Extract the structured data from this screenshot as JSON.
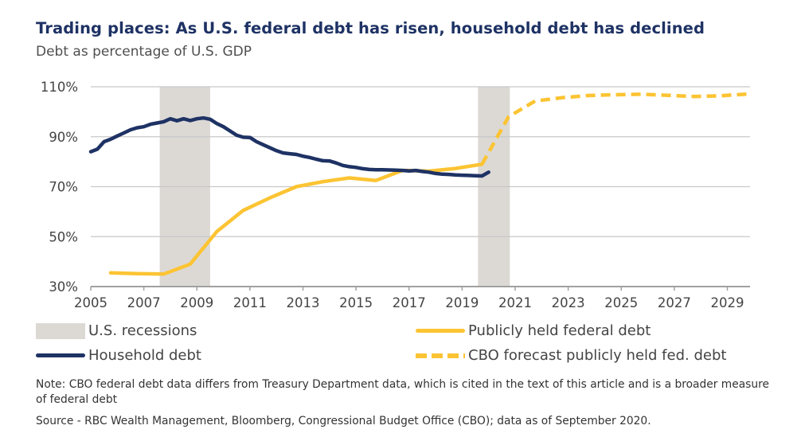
{
  "header": {
    "title": "Trading places: As U.S. federal debt has risen, household debt has declined",
    "subtitle": "Debt as percentage of U.S. GDP"
  },
  "chart_data": {
    "type": "line",
    "title": "Trading places: As U.S. federal debt has risen, household debt has declined",
    "subtitle": "Debt as percentage of U.S. GDP",
    "xlabel": "",
    "ylabel": "Debt as percentage of U.S. GDP",
    "xlim": [
      2005,
      2029.9
    ],
    "ylim": [
      30,
      110
    ],
    "x_ticks": [
      2005,
      2007,
      2009,
      2011,
      2013,
      2015,
      2017,
      2019,
      2021,
      2023,
      2025,
      2027,
      2029
    ],
    "x_tick_labels": [
      "2005",
      "2007",
      "2009",
      "2011",
      "2013",
      "2015",
      "2017",
      "2019",
      "2021",
      "2023",
      "2025",
      "2027",
      "2029"
    ],
    "y_ticks": [
      30,
      50,
      70,
      90,
      110
    ],
    "y_tick_labels": [
      "30%",
      "50%",
      "70%",
      "90%",
      "110%"
    ],
    "grid": "horizontal",
    "legend_position": "bottom",
    "recessions": [
      {
        "name": "U.S. recessions",
        "start": 2007.6,
        "end": 2009.5
      },
      {
        "name": "U.S. recessions",
        "start": 2019.6,
        "end": 2020.8
      }
    ],
    "series": [
      {
        "name": "Household debt",
        "color": "#1e3264",
        "style": "solid",
        "x": [
          2005.0,
          2005.25,
          2005.5,
          2005.75,
          2006.0,
          2006.25,
          2006.5,
          2006.75,
          2007.0,
          2007.25,
          2007.5,
          2007.75,
          2008.0,
          2008.25,
          2008.5,
          2008.75,
          2009.0,
          2009.25,
          2009.5,
          2009.75,
          2010.0,
          2010.25,
          2010.5,
          2010.75,
          2011.0,
          2011.25,
          2011.5,
          2011.75,
          2012.0,
          2012.25,
          2012.5,
          2012.75,
          2013.0,
          2013.25,
          2013.5,
          2013.75,
          2014.0,
          2014.25,
          2014.5,
          2014.75,
          2015.0,
          2015.25,
          2015.5,
          2015.75,
          2016.0,
          2016.25,
          2016.5,
          2016.75,
          2017.0,
          2017.25,
          2017.5,
          2017.75,
          2018.0,
          2018.25,
          2018.5,
          2018.75,
          2019.0,
          2019.25,
          2019.5,
          2019.75,
          2020.0
        ],
        "values": [
          84.0,
          85.0,
          88.0,
          89.0,
          90.3,
          91.5,
          92.8,
          93.6,
          94.0,
          95.0,
          95.5,
          96.0,
          97.2,
          96.4,
          97.2,
          96.5,
          97.2,
          97.5,
          97.0,
          95.3,
          94.0,
          92.3,
          90.6,
          89.8,
          89.7,
          88.0,
          86.8,
          85.6,
          84.4,
          83.5,
          83.2,
          82.9,
          82.2,
          81.7,
          81.0,
          80.4,
          80.3,
          79.5,
          78.5,
          78.0,
          77.7,
          77.2,
          76.9,
          76.8,
          76.8,
          76.7,
          76.6,
          76.5,
          76.3,
          76.5,
          76.1,
          75.8,
          75.3,
          75.0,
          74.9,
          74.7,
          74.6,
          74.5,
          74.4,
          74.3,
          75.8
        ]
      },
      {
        "name": "Publicly held federal debt",
        "color": "#fcc433",
        "style": "solid",
        "x": [
          2005.75,
          2006.75,
          2007.75,
          2008.75,
          2009.75,
          2010.75,
          2011.75,
          2012.75,
          2013.75,
          2014.75,
          2015.75,
          2016.75,
          2017.75,
          2018.75,
          2019.75
        ],
        "values": [
          35.5,
          35.2,
          35.0,
          39.0,
          52.0,
          60.5,
          65.5,
          70.0,
          72.0,
          73.5,
          72.5,
          76.5,
          76.2,
          77.3,
          79.0
        ]
      },
      {
        "name": "CBO forecast publicly held fed. debt",
        "color": "#fcc433",
        "style": "dashed",
        "x": [
          2019.75,
          2020.75,
          2021.75,
          2022.75,
          2023.75,
          2024.75,
          2025.75,
          2026.75,
          2027.75,
          2028.75,
          2029.9
        ],
        "values": [
          79.0,
          98.0,
          104.3,
          105.6,
          106.5,
          106.8,
          107.0,
          106.6,
          106.1,
          106.4,
          107.2
        ]
      }
    ]
  },
  "legend": {
    "items": [
      {
        "label": "U.S. recessions",
        "key": "recession"
      },
      {
        "label": "Publicly held federal debt",
        "key": "federal"
      },
      {
        "label": "Household debt",
        "key": "household"
      },
      {
        "label": "CBO forecast publicly held fed. debt",
        "key": "forecast"
      }
    ]
  },
  "footer": {
    "note": "Note: CBO federal debt data differs from Treasury Department data, which is cited in the text of this article and is a broader measure of federal debt",
    "source": "Source - RBC Wealth Management, Bloomberg, Congressional Budget Office (CBO); data as of September 2020."
  }
}
